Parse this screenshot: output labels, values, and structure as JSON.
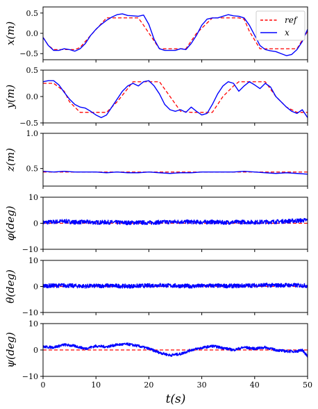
{
  "figure": {
    "xlabel": "t(s)"
  },
  "legend": {
    "placement": "top-right",
    "entries": [
      {
        "label": "ref",
        "color": "#ff0000",
        "dash": true
      },
      {
        "label": "x",
        "color": "#0000ff",
        "dash": false
      }
    ]
  },
  "chart_data": [
    {
      "type": "line",
      "ylabel": "x(m)",
      "xlim": [
        0,
        50
      ],
      "ylim": [
        -0.65,
        0.65
      ],
      "yticks": [
        -0.5,
        0.0,
        0.5
      ],
      "yticklabels": [
        "−0.5",
        "0.0",
        "0.5"
      ],
      "series": [
        {
          "name": "ref",
          "color": "#ff0000",
          "dash": true,
          "x": [
            0,
            1,
            2,
            4,
            6,
            7,
            9,
            12,
            15,
            17,
            18,
            19,
            22,
            25,
            27,
            29,
            32,
            35,
            37,
            38,
            39,
            41,
            44,
            46,
            48,
            50
          ],
          "y": [
            -0.1,
            -0.3,
            -0.4,
            -0.4,
            -0.4,
            -0.35,
            -0.05,
            0.38,
            0.38,
            0.38,
            0.38,
            0.2,
            -0.38,
            -0.38,
            -0.38,
            0.0,
            0.38,
            0.38,
            0.38,
            0.35,
            0.05,
            -0.38,
            -0.38,
            -0.38,
            -0.38,
            0.05
          ]
        },
        {
          "name": "x",
          "color": "#0000ff",
          "dash": false,
          "x": [
            0,
            1,
            2,
            3,
            4,
            5,
            6,
            7,
            8,
            9,
            10,
            11,
            12,
            13,
            14,
            15,
            16,
            17,
            18,
            19,
            20,
            21,
            22,
            23,
            24,
            25,
            26,
            27,
            28,
            29,
            30,
            31,
            32,
            33,
            34,
            35,
            36,
            37,
            38,
            39,
            40,
            41,
            42,
            43,
            44,
            45,
            46,
            47,
            48,
            49,
            50
          ],
          "y": [
            -0.1,
            -0.3,
            -0.42,
            -0.42,
            -0.38,
            -0.4,
            -0.44,
            -0.38,
            -0.25,
            -0.05,
            0.1,
            0.22,
            0.32,
            0.4,
            0.46,
            0.48,
            0.44,
            0.43,
            0.42,
            0.45,
            0.22,
            -0.15,
            -0.38,
            -0.42,
            -0.42,
            -0.42,
            -0.38,
            -0.4,
            -0.25,
            -0.05,
            0.2,
            0.35,
            0.38,
            0.38,
            0.42,
            0.46,
            0.43,
            0.42,
            0.38,
            0.2,
            -0.05,
            -0.3,
            -0.4,
            -0.43,
            -0.45,
            -0.5,
            -0.55,
            -0.52,
            -0.4,
            -0.2,
            0.1
          ]
        }
      ]
    },
    {
      "type": "line",
      "ylabel": "y(m)",
      "xlim": [
        0,
        50
      ],
      "ylim": [
        -0.5,
        0.5
      ],
      "yticks": [
        -0.5,
        0.0,
        0.5
      ],
      "yticklabels": [
        "−0.5",
        "0.0",
        "0.5"
      ],
      "series": [
        {
          "name": "ref",
          "color": "#ff0000",
          "dash": true,
          "x": [
            0,
            2,
            4,
            5,
            7,
            10,
            12,
            14,
            16,
            17,
            20,
            22,
            24,
            26,
            28,
            30,
            32,
            34,
            36,
            37,
            40,
            42,
            44,
            46,
            48,
            50
          ],
          "y": [
            0.25,
            0.25,
            0.1,
            -0.1,
            -0.3,
            -0.3,
            -0.3,
            -0.1,
            0.15,
            0.28,
            0.28,
            0.28,
            0.0,
            -0.28,
            -0.3,
            -0.3,
            -0.3,
            0.0,
            0.2,
            0.28,
            0.28,
            0.28,
            0.0,
            -0.2,
            -0.3,
            -0.3
          ]
        },
        {
          "name": "x",
          "color": "#0000ff",
          "dash": false,
          "x": [
            0,
            1,
            2,
            3,
            4,
            5,
            6,
            7,
            8,
            9,
            10,
            11,
            12,
            13,
            14,
            15,
            16,
            17,
            18,
            19,
            20,
            21,
            22,
            23,
            24,
            25,
            26,
            27,
            28,
            29,
            30,
            31,
            32,
            33,
            34,
            35,
            36,
            37,
            38,
            39,
            40,
            41,
            42,
            43,
            44,
            45,
            46,
            47,
            48,
            49,
            50
          ],
          "y": [
            0.28,
            0.3,
            0.3,
            0.22,
            0.08,
            -0.05,
            -0.15,
            -0.2,
            -0.22,
            -0.28,
            -0.35,
            -0.4,
            -0.35,
            -0.2,
            -0.05,
            0.1,
            0.2,
            0.25,
            0.2,
            0.28,
            0.3,
            0.2,
            0.05,
            -0.15,
            -0.25,
            -0.28,
            -0.25,
            -0.3,
            -0.2,
            -0.28,
            -0.35,
            -0.32,
            -0.15,
            0.05,
            0.2,
            0.28,
            0.25,
            0.1,
            0.2,
            0.28,
            0.22,
            0.15,
            0.25,
            0.18,
            0.0,
            -0.1,
            -0.2,
            -0.28,
            -0.32,
            -0.25,
            -0.4
          ]
        }
      ]
    },
    {
      "type": "line",
      "ylabel": "z(m)",
      "xlim": [
        0,
        50
      ],
      "ylim": [
        0.25,
        1.0
      ],
      "yticks": [
        0.5,
        1.0
      ],
      "yticklabels": [
        "0.5",
        "1.0"
      ],
      "series": [
        {
          "name": "ref",
          "color": "#ff0000",
          "dash": true,
          "x": [
            0,
            50
          ],
          "y": [
            0.45,
            0.45
          ]
        },
        {
          "name": "x",
          "color": "#0000ff",
          "dash": false,
          "x": [
            0,
            2,
            4,
            6,
            8,
            10,
            12,
            14,
            16,
            18,
            20,
            22,
            24,
            26,
            28,
            30,
            32,
            34,
            36,
            38,
            40,
            42,
            44,
            46,
            48,
            50
          ],
          "y": [
            0.46,
            0.45,
            0.46,
            0.45,
            0.45,
            0.45,
            0.44,
            0.45,
            0.44,
            0.44,
            0.45,
            0.44,
            0.43,
            0.44,
            0.44,
            0.45,
            0.45,
            0.45,
            0.45,
            0.46,
            0.45,
            0.44,
            0.43,
            0.44,
            0.43,
            0.42
          ]
        }
      ]
    },
    {
      "type": "line",
      "ylabel": "φ(deg)",
      "xlim": [
        0,
        50
      ],
      "ylim": [
        -10,
        10
      ],
      "yticks": [
        -10,
        0,
        10
      ],
      "yticklabels": [
        "−10",
        "0",
        "10"
      ],
      "series": [
        {
          "name": "ref",
          "color": "#ff0000",
          "dash": true,
          "x": [
            0,
            50
          ],
          "y": [
            0,
            0
          ]
        },
        {
          "name": "x",
          "color": "#0000ff",
          "dash": false,
          "x": [
            0,
            2,
            4,
            6,
            8,
            10,
            12,
            14,
            16,
            18,
            20,
            22,
            24,
            26,
            28,
            30,
            32,
            34,
            36,
            38,
            40,
            42,
            44,
            46,
            48,
            50
          ],
          "y": [
            0.3,
            0.5,
            0.8,
            0.4,
            0.5,
            0.3,
            0.4,
            0.3,
            0.2,
            0.3,
            0.2,
            0.4,
            0.5,
            0.6,
            0.5,
            0.4,
            0.5,
            0.3,
            0.4,
            0.5,
            0.4,
            0.5,
            0.6,
            0.8,
            1.0,
            1.2
          ],
          "noise": 0.8
        }
      ]
    },
    {
      "type": "line",
      "ylabel": "θ(deg)",
      "xlim": [
        0,
        50
      ],
      "ylim": [
        -10,
        10
      ],
      "yticks": [
        -10,
        0,
        10
      ],
      "yticklabels": [
        "−10",
        "0",
        "10"
      ],
      "series": [
        {
          "name": "ref",
          "color": "#ff0000",
          "dash": true,
          "x": [
            0,
            50
          ],
          "y": [
            0,
            0
          ]
        },
        {
          "name": "x",
          "color": "#0000ff",
          "dash": false,
          "x": [
            0,
            2,
            4,
            6,
            8,
            10,
            12,
            14,
            16,
            18,
            20,
            22,
            24,
            26,
            28,
            30,
            32,
            34,
            36,
            38,
            40,
            42,
            44,
            46,
            48,
            50
          ],
          "y": [
            0.2,
            0.3,
            0.4,
            0.2,
            0.1,
            0.2,
            0.3,
            0.2,
            0.1,
            0.2,
            0.3,
            0.5,
            0.3,
            0.2,
            0.1,
            0.2,
            0.3,
            0.2,
            0.2,
            0.3,
            0.4,
            0.5,
            0.4,
            0.5,
            0.4,
            0.3
          ],
          "noise": 0.8
        }
      ]
    },
    {
      "type": "line",
      "ylabel": "ψ(deg)",
      "xlim": [
        0,
        50
      ],
      "ylim": [
        -10,
        10
      ],
      "yticks": [
        -10,
        0,
        10
      ],
      "yticklabels": [
        "−10",
        "0",
        "10"
      ],
      "xticks": [
        0,
        10,
        20,
        30,
        40,
        50
      ],
      "xticklabels": [
        "0",
        "10",
        "20",
        "30",
        "40",
        "50"
      ],
      "series": [
        {
          "name": "ref",
          "color": "#ff0000",
          "dash": true,
          "x": [
            0,
            50
          ],
          "y": [
            0,
            0
          ]
        },
        {
          "name": "x",
          "color": "#0000ff",
          "dash": false,
          "x": [
            0,
            2,
            4,
            6,
            8,
            10,
            12,
            14,
            16,
            18,
            20,
            22,
            24,
            26,
            28,
            30,
            32,
            34,
            36,
            38,
            40,
            42,
            44,
            46,
            48,
            49,
            50
          ],
          "y": [
            1.2,
            1.0,
            2.0,
            1.5,
            0.5,
            1.5,
            1.2,
            2.0,
            2.2,
            1.5,
            0.5,
            -1.0,
            -2.0,
            -1.5,
            0.0,
            0.8,
            1.5,
            0.8,
            0.0,
            1.0,
            0.5,
            1.0,
            0.0,
            -0.5,
            -0.5,
            0.0,
            -2.5
          ],
          "noise": 0.5
        }
      ]
    }
  ]
}
